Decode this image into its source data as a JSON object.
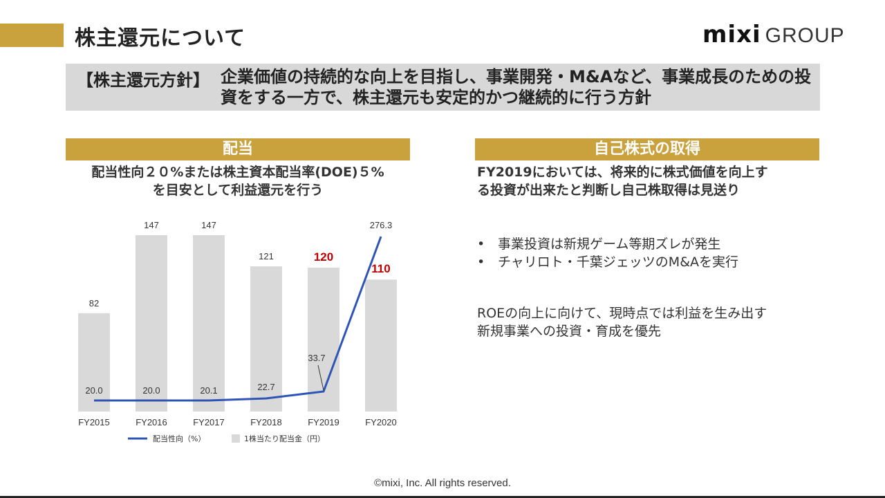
{
  "header": {
    "title": "株主還元について"
  },
  "logo": {
    "mixi": "mixi",
    "group": "GROUP"
  },
  "policy": {
    "label": "【株主還元方針】",
    "text": "企業価値の持続的な向上を目指し、事業開発・M&Aなど、事業成長のための投資をする一方で、株主還元も安定的かつ継続的に行う方針"
  },
  "dividend": {
    "header": "配当",
    "line1": "配当性向２０%または株主資本配当率(DOE)５%",
    "line2": "を目安として利益還元を行う"
  },
  "buyback": {
    "header": "自己株式の取得",
    "line1": "FY2019においては、将来的に株式価値を向上す",
    "line2": "る投資が出来たと判断し自己株取得は見送り",
    "bullets": [
      "事業投資は新規ゲーム等期ズレが発生",
      "チャリロト・千葉ジェッツのM&Aを実行"
    ],
    "bullet_mark": "•",
    "roe_line1": "ROEの向上に向けて、現時点では利益を生み出す",
    "roe_line2": "新規事業への投資・育成を優先"
  },
  "chart_data": {
    "type": "bar",
    "categories": [
      "FY2015",
      "FY2016",
      "FY2017",
      "FY2018",
      "FY2019",
      "FY2020"
    ],
    "series": [
      {
        "name": "1株当たり配当金（円）",
        "type": "bar",
        "values": [
          82,
          147,
          147,
          121,
          120,
          110
        ],
        "color": "#d9d9d9",
        "labels": [
          "82",
          "147",
          "147",
          "121",
          "120",
          "110"
        ],
        "highlight": [
          false,
          false,
          false,
          false,
          true,
          true
        ]
      },
      {
        "name": "配当性向（%）",
        "type": "line",
        "values": [
          20.0,
          20.0,
          20.1,
          22.7,
          33.7,
          276.3
        ],
        "color": "#2e55b5",
        "labels": [
          "20.0",
          "20.0",
          "20.1",
          "22.7",
          "33.7",
          "276.3"
        ]
      }
    ],
    "highlight_color": "#c00000",
    "legend_position": "bottom"
  },
  "footer": {
    "copyright": "©mixi, Inc. All rights reserved."
  }
}
